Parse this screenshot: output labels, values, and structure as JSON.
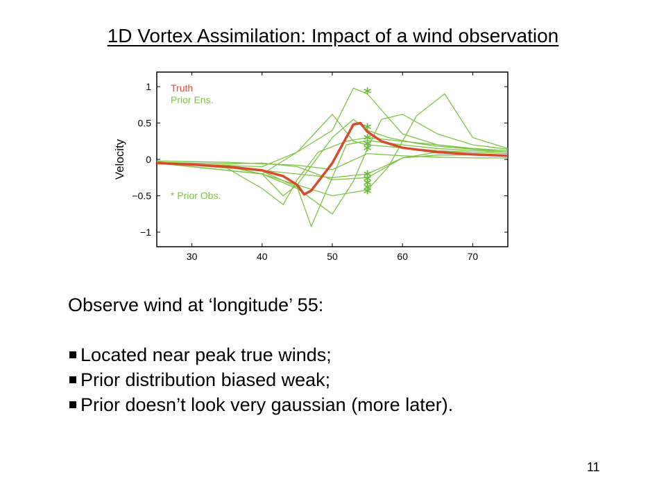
{
  "slide": {
    "title": "1D Vortex Assimilation: Impact of a wind observation",
    "body_heading": "Observe wind at ‘longitude’ 55:",
    "bullets": [
      "Located near peak true winds;",
      "Prior distribution biased weak;",
      "Prior doesn’t look very gaussian (more later)."
    ],
    "page_number": "11"
  },
  "colors": {
    "truth": "#d94a2a",
    "prior": "#7cc443",
    "prior_obs": "#6dbb3a",
    "axis": "#000000"
  },
  "chart_data": {
    "type": "line",
    "title": "",
    "xlabel": "",
    "ylabel": "Velocity",
    "xlim": [
      25,
      75
    ],
    "ylim": [
      -1.2,
      1.2
    ],
    "xticks": [
      30,
      40,
      50,
      60,
      70
    ],
    "yticks": [
      1,
      0.5,
      0,
      -0.5,
      -1
    ],
    "xtick_labels": [
      "30",
      "40",
      "50",
      "60",
      "70"
    ],
    "ytick_labels": [
      "1",
      "0.5",
      "0",
      "−0.5",
      "−1"
    ],
    "grid": false,
    "legend": {
      "truth_label": "Truth",
      "prior_label": "Prior Ens.",
      "obs_label": "* Prior Obs."
    },
    "truth": {
      "name": "Truth",
      "x": [
        25,
        30,
        35,
        40,
        43,
        45,
        46,
        47,
        50,
        53,
        54,
        55,
        57,
        60,
        65,
        70,
        75
      ],
      "y": [
        -0.05,
        -0.07,
        -0.1,
        -0.15,
        -0.23,
        -0.35,
        -0.48,
        -0.43,
        -0.05,
        0.48,
        0.5,
        0.38,
        0.25,
        0.16,
        0.1,
        0.07,
        0.05
      ]
    },
    "prior_ensemble": [
      {
        "x": [
          25,
          35,
          45,
          50,
          55,
          60,
          65,
          70,
          75
        ],
        "y": [
          -0.02,
          -0.04,
          -0.08,
          -0.14,
          0.08,
          0.05,
          0.03,
          0.02,
          0.02
        ]
      },
      {
        "x": [
          25,
          40,
          45,
          47,
          52,
          55,
          60,
          65,
          70,
          75
        ],
        "y": [
          -0.03,
          -0.16,
          -0.38,
          -0.92,
          0.2,
          0.26,
          0.2,
          0.15,
          0.12,
          0.1
        ]
      },
      {
        "x": [
          25,
          35,
          40,
          43,
          45,
          48,
          52,
          55,
          60,
          65,
          70,
          75
        ],
        "y": [
          -0.04,
          -0.12,
          -0.4,
          -0.62,
          -0.28,
          0.1,
          0.25,
          0.3,
          0.25,
          0.2,
          0.15,
          0.12
        ]
      },
      {
        "x": [
          25,
          40,
          45,
          50,
          53,
          55,
          57,
          60,
          65,
          70,
          75
        ],
        "y": [
          -0.05,
          -0.2,
          -0.4,
          -0.75,
          -0.3,
          0.15,
          0.55,
          0.62,
          0.35,
          0.2,
          0.14
        ]
      },
      {
        "x": [
          25,
          35,
          40,
          43,
          45,
          50,
          53,
          55,
          58,
          62,
          65,
          70,
          75
        ],
        "y": [
          -0.04,
          -0.1,
          -0.2,
          -0.5,
          -0.35,
          0.3,
          0.55,
          0.4,
          0.3,
          0.22,
          0.18,
          0.14,
          0.1
        ]
      },
      {
        "x": [
          25,
          40,
          45,
          50,
          53,
          55,
          60,
          65,
          70,
          75
        ],
        "y": [
          -0.05,
          -0.1,
          0.1,
          0.62,
          0.25,
          0.2,
          0.16,
          0.12,
          0.1,
          0.08
        ]
      },
      {
        "x": [
          25,
          35,
          40,
          45,
          50,
          55,
          60,
          65,
          70,
          75
        ],
        "y": [
          -0.04,
          -0.06,
          -0.05,
          -0.1,
          -0.28,
          -0.25,
          0.02,
          0.06,
          0.06,
          0.05
        ]
      },
      {
        "x": [
          25,
          35,
          40,
          45,
          50,
          53,
          55,
          60,
          65,
          70,
          75
        ],
        "y": [
          -0.05,
          -0.15,
          -0.2,
          0.1,
          0.4,
          0.98,
          0.9,
          0.35,
          0.2,
          0.15,
          0.12
        ]
      },
      {
        "x": [
          25,
          35,
          40,
          45,
          50,
          55,
          58,
          62,
          66,
          70,
          75
        ],
        "y": [
          -0.04,
          -0.1,
          -0.2,
          -0.35,
          -0.5,
          -0.42,
          -0.1,
          0.6,
          0.9,
          0.3,
          0.15
        ]
      },
      {
        "x": [
          25,
          35,
          40,
          45,
          50,
          55,
          60,
          65,
          70,
          75
        ],
        "y": [
          -0.06,
          -0.08,
          -0.15,
          -0.2,
          -0.25,
          -0.2,
          0.02,
          0.1,
          0.08,
          0.05
        ]
      }
    ],
    "prior_obs": {
      "x": [
        55,
        55,
        55,
        55,
        55,
        55,
        55,
        55,
        55,
        55
      ],
      "y": [
        0.92,
        0.43,
        0.28,
        0.2,
        0.14,
        -0.22,
        -0.28,
        -0.34,
        -0.4,
        -0.45
      ]
    }
  }
}
